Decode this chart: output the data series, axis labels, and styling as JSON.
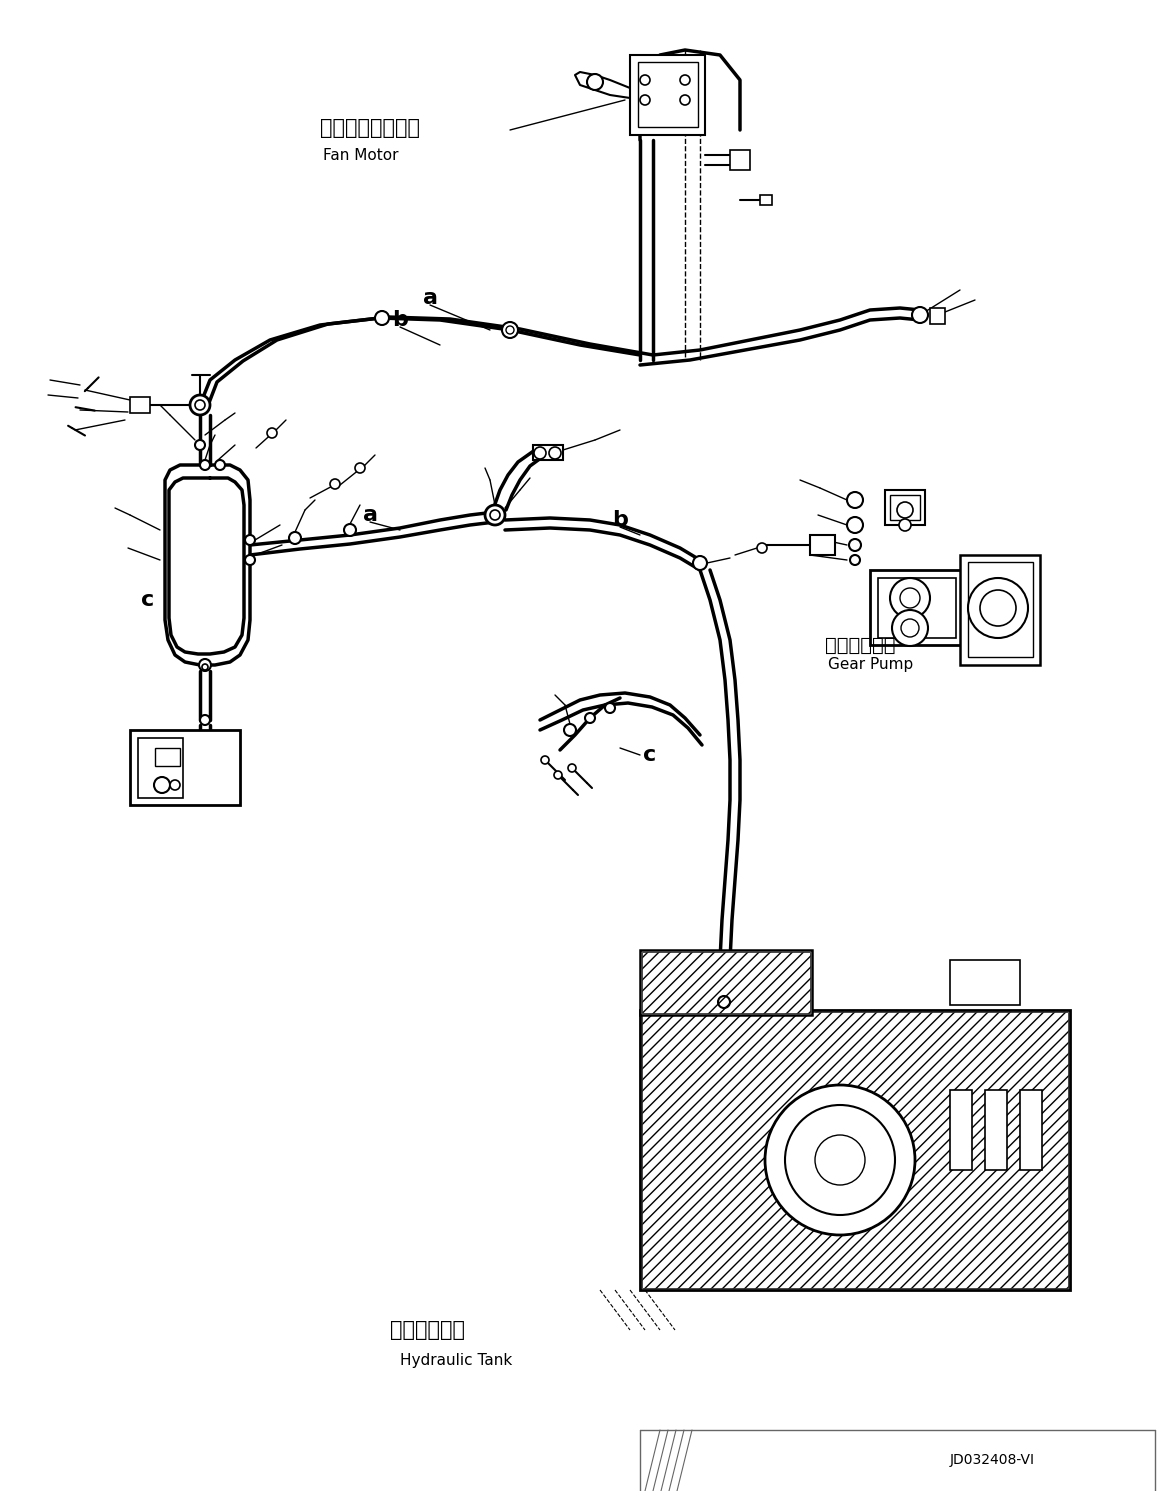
{
  "background_color": "#ffffff",
  "line_color": "#000000",
  "figure_width": 11.65,
  "figure_height": 14.91,
  "labels": {
    "fan_motor_jp": "インファンモータ",
    "fan_motor_en": "Fan Motor",
    "gear_pump_jp": "ギヤーポンプ",
    "gear_pump_en": "Gear Pump",
    "hydraulic_tank_jp": "作動油タンク",
    "hydraulic_tank_en": "Hydraulic Tank",
    "part_code": "JD032408-VⅠ"
  }
}
